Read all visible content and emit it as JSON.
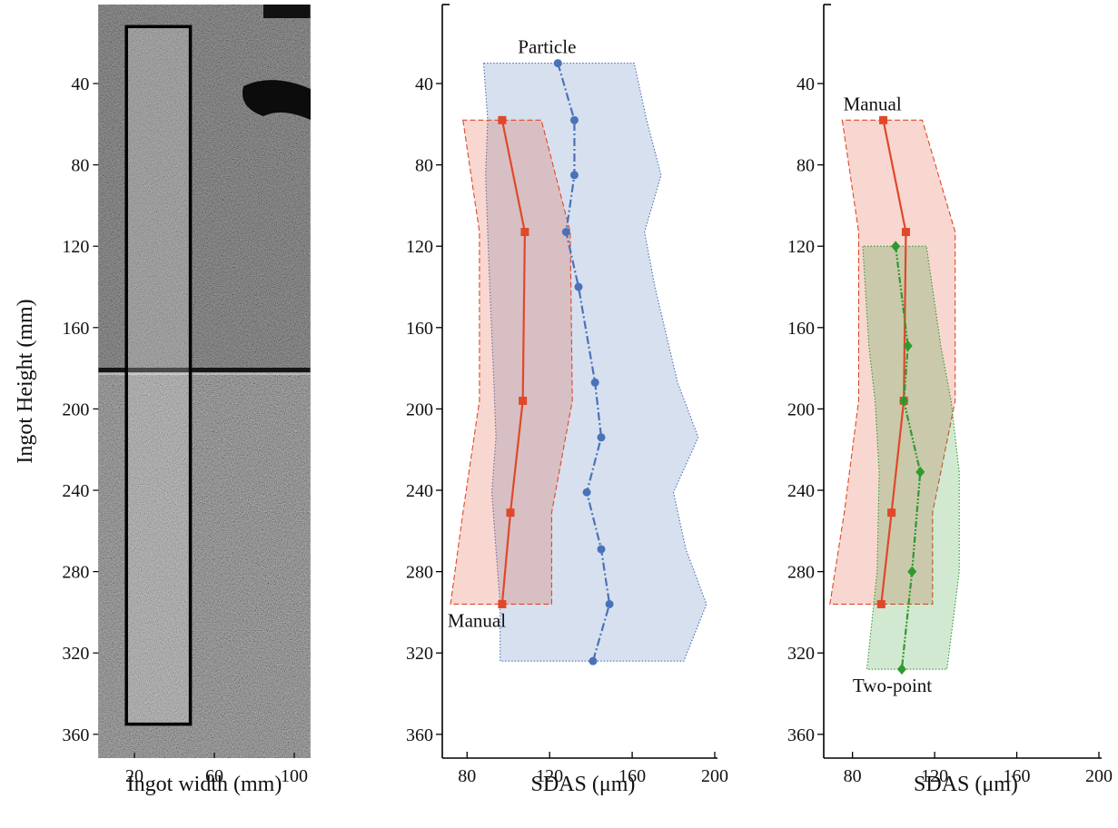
{
  "chart_data": [
    {
      "type": "image",
      "xlabel": "Ingot width (mm)",
      "ylabel": "Ingot Height (mm)",
      "xlim": [
        2,
        108
      ],
      "xticks": [
        20,
        60,
        100
      ],
      "ylim": [
        372,
        0
      ],
      "yticks": [
        40,
        80,
        120,
        160,
        200,
        240,
        280,
        320,
        360
      ],
      "region": {
        "x": [
          16,
          48
        ],
        "y": [
          12,
          355
        ]
      }
    },
    {
      "type": "line",
      "xlabel": "SDAS (μm)",
      "xlim": [
        68,
        200
      ],
      "xticks": [
        80,
        120,
        160,
        200
      ],
      "ylim": [
        372,
        0
      ],
      "yticks": [
        40,
        80,
        120,
        160,
        200,
        240,
        280,
        320,
        360
      ],
      "series": [
        {
          "name": "Particle",
          "color": "#4a72b8",
          "linestyle": "dashdot",
          "marker": "circle",
          "band_style": "dotted",
          "heights": [
            30,
            58,
            85,
            113,
            140,
            187,
            214,
            241,
            269,
            296,
            324
          ],
          "values": [
            124,
            132,
            132,
            128,
            134,
            142,
            145,
            138,
            145,
            149,
            141
          ],
          "lower": [
            88,
            90,
            89,
            90,
            91,
            93,
            94,
            92,
            94,
            96,
            96
          ],
          "upper": [
            161,
            167,
            174,
            166,
            171,
            182,
            192,
            180,
            186,
            196,
            185
          ]
        },
        {
          "name": "Manual",
          "color": "#e0482a",
          "linestyle": "solid",
          "marker": "square",
          "band_style": "dashed",
          "heights": [
            58,
            113,
            196,
            251,
            296
          ],
          "values": [
            97,
            108,
            107,
            101,
            97
          ],
          "lower": [
            78,
            86,
            86,
            78,
            72
          ],
          "upper": [
            116,
            130,
            131,
            121,
            121
          ]
        }
      ]
    },
    {
      "type": "line",
      "xlabel": "SDAS (μm)",
      "xlim": [
        66,
        200
      ],
      "xticks": [
        80,
        120,
        160,
        200
      ],
      "ylim": [
        372,
        0
      ],
      "yticks": [
        40,
        80,
        120,
        160,
        200,
        240,
        280,
        320,
        360
      ],
      "series": [
        {
          "name": "Manual",
          "color": "#e0482a",
          "linestyle": "solid",
          "marker": "square",
          "band_style": "dashed",
          "heights": [
            58,
            113,
            196,
            251,
            296
          ],
          "values": [
            95,
            106,
            105,
            99,
            94
          ],
          "lower": [
            75,
            83,
            83,
            76,
            69
          ],
          "upper": [
            114,
            130,
            130,
            119,
            119
          ]
        },
        {
          "name": "Two-point",
          "color": "#2e9a2e",
          "linestyle": "dashdotdot",
          "marker": "diamond",
          "band_style": "dotted",
          "heights": [
            120,
            169,
            196,
            231,
            280,
            328
          ],
          "values": [
            101,
            107,
            105,
            113,
            109,
            104
          ],
          "lower": [
            85,
            88,
            91,
            93,
            92,
            87
          ],
          "upper": [
            116,
            123,
            128,
            132,
            132,
            126
          ]
        }
      ]
    }
  ]
}
